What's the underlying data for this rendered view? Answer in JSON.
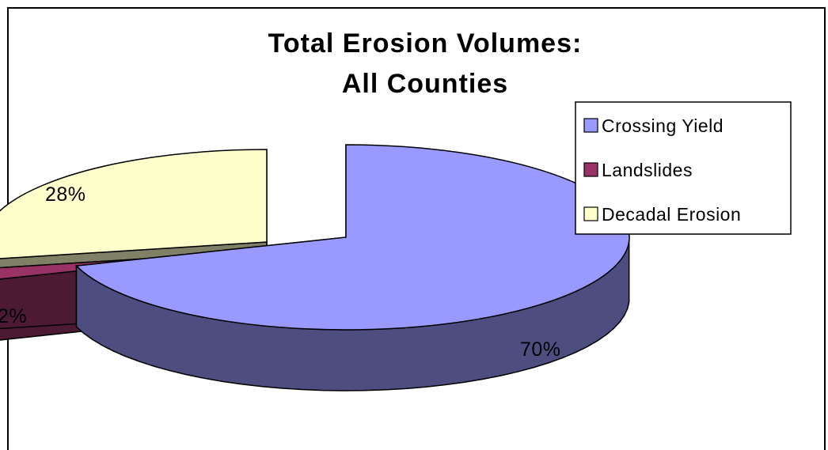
{
  "chart_data": {
    "type": "pie",
    "title": [
      "Total Erosion Volumes:",
      "All Counties"
    ],
    "slices": [
      {
        "label": "Crossing Yield",
        "value": 70,
        "display": "70%",
        "top_color": "#9999ff",
        "side_color": "#4d4d80"
      },
      {
        "label": "Landslides",
        "value": 2,
        "display": "2%",
        "top_color": "#993366",
        "side_color": "#4d1a33"
      },
      {
        "label": "Decadal Erosion",
        "value": 28,
        "display": "28%",
        "top_color": "#ffffcc",
        "side_color": "#808066"
      }
    ],
    "legend": {
      "position": "right",
      "entries": [
        "Crossing Yield",
        "Landslides",
        "Decadal Erosion"
      ]
    },
    "exploded": true,
    "three_d": true
  }
}
